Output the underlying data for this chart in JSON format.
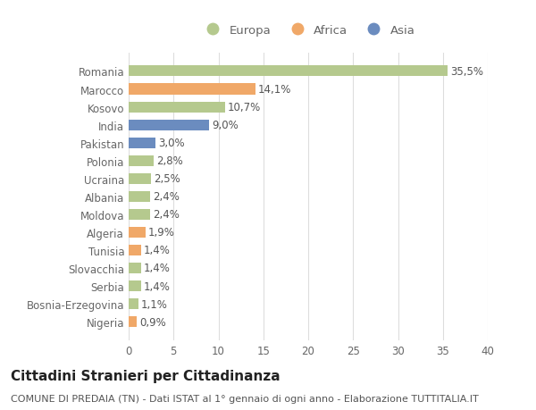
{
  "categories": [
    "Romania",
    "Marocco",
    "Kosovo",
    "India",
    "Pakistan",
    "Polonia",
    "Ucraina",
    "Albania",
    "Moldova",
    "Algeria",
    "Tunisia",
    "Slovacchia",
    "Serbia",
    "Bosnia-Erzegovina",
    "Nigeria"
  ],
  "values": [
    35.5,
    14.1,
    10.7,
    9.0,
    3.0,
    2.8,
    2.5,
    2.4,
    2.4,
    1.9,
    1.4,
    1.4,
    1.4,
    1.1,
    0.9
  ],
  "labels": [
    "35,5%",
    "14,1%",
    "10,7%",
    "9,0%",
    "3,0%",
    "2,8%",
    "2,5%",
    "2,4%",
    "2,4%",
    "1,9%",
    "1,4%",
    "1,4%",
    "1,4%",
    "1,1%",
    "0,9%"
  ],
  "continent": [
    "Europa",
    "Africa",
    "Europa",
    "Asia",
    "Asia",
    "Europa",
    "Europa",
    "Europa",
    "Europa",
    "Africa",
    "Africa",
    "Europa",
    "Europa",
    "Europa",
    "Africa"
  ],
  "colors": {
    "Europa": "#b5c98e",
    "Africa": "#f0a868",
    "Asia": "#6b8cbf"
  },
  "xlim": [
    0,
    40
  ],
  "xticks": [
    0,
    5,
    10,
    15,
    20,
    25,
    30,
    35,
    40
  ],
  "background_color": "#ffffff",
  "grid_color": "#dddddd",
  "title": "Cittadini Stranieri per Cittadinanza",
  "subtitle": "COMUNE DI PREDAIA (TN) - Dati ISTAT al 1° gennaio di ogni anno - Elaborazione TUTTITALIA.IT",
  "bar_height": 0.6,
  "label_fontsize": 8.5,
  "tick_fontsize": 8.5,
  "title_fontsize": 11,
  "subtitle_fontsize": 8
}
